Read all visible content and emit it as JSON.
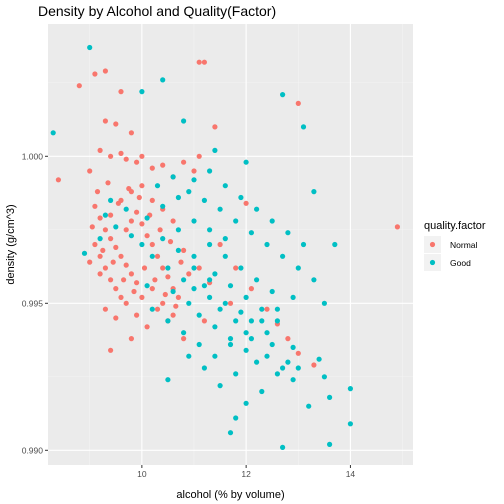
{
  "chart_data": {
    "type": "scatter",
    "title": "Density by Alcohol and Quality(Factor)",
    "xlabel": "alcohol (% by volume)",
    "ylabel": "density (g/cm^3)",
    "xlim": [
      8.2,
      15.2
    ],
    "ylim": [
      0.9895,
      1.0045
    ],
    "x_ticks": [
      10,
      12,
      14
    ],
    "y_ticks": [
      0.99,
      0.995,
      1.0
    ],
    "x_tick_labels": [
      "10",
      "12",
      "14"
    ],
    "y_tick_labels": [
      "0.990",
      "0.995",
      "1.000"
    ],
    "grid": true,
    "legend": {
      "title": "quality.factor",
      "position": "right"
    },
    "series": [
      {
        "name": "Normal",
        "color": "#F8766D",
        "points": [
          [
            8.8,
            1.0024
          ],
          [
            9.1,
            1.0028
          ],
          [
            9.3,
            1.0029
          ],
          [
            9.6,
            1.0022
          ],
          [
            11.1,
            1.0032
          ],
          [
            11.2,
            1.0032
          ],
          [
            13.0,
            1.0018
          ],
          [
            14.9,
            0.9976
          ],
          [
            8.4,
            0.9992
          ],
          [
            9.0,
            0.9995
          ],
          [
            9.2,
            1.0002
          ],
          [
            9.3,
            1.0012
          ],
          [
            9.5,
            1.0011
          ],
          [
            9.8,
            1.0008
          ],
          [
            9.4,
            1.0
          ],
          [
            9.6,
            1.0001
          ],
          [
            9.7,
            0.9999
          ],
          [
            9.9,
            0.9998
          ],
          [
            10.0,
            1.0
          ],
          [
            10.2,
            0.9996
          ],
          [
            10.4,
            0.9997
          ],
          [
            10.6,
            0.9993
          ],
          [
            10.8,
            0.9998
          ],
          [
            11.0,
            0.9995
          ],
          [
            11.1,
            1.0
          ],
          [
            11.4,
            1.001
          ],
          [
            12.0,
            0.9984
          ],
          [
            9.1,
            0.9983
          ],
          [
            9.2,
            0.9979
          ],
          [
            9.3,
            0.9975
          ],
          [
            9.4,
            0.9972
          ],
          [
            9.5,
            0.9969
          ],
          [
            9.6,
            0.9966
          ],
          [
            9.7,
            0.9963
          ],
          [
            9.8,
            0.996
          ],
          [
            9.9,
            0.9957
          ],
          [
            9.1,
            0.997
          ],
          [
            9.2,
            0.9966
          ],
          [
            9.3,
            0.9962
          ],
          [
            9.4,
            0.9958
          ],
          [
            9.5,
            0.9955
          ],
          [
            9.6,
            0.9952
          ],
          [
            9.7,
            0.9975
          ],
          [
            9.8,
            0.9978
          ],
          [
            9.9,
            0.9981
          ],
          [
            10.0,
            0.9977
          ],
          [
            10.1,
            0.9973
          ],
          [
            10.2,
            0.997
          ],
          [
            10.3,
            0.9966
          ],
          [
            10.4,
            0.9962
          ],
          [
            10.5,
            0.9959
          ],
          [
            10.6,
            0.9955
          ],
          [
            10.7,
            0.9952
          ],
          [
            10.8,
            0.9968
          ],
          [
            9.0,
            0.9964
          ],
          [
            9.2,
            0.996
          ],
          [
            9.4,
            0.998
          ],
          [
            9.6,
            0.9985
          ],
          [
            9.8,
            0.9988
          ],
          [
            10.0,
            0.999
          ],
          [
            10.2,
            0.9985
          ],
          [
            10.4,
            0.9982
          ],
          [
            10.6,
            0.9978
          ],
          [
            9.3,
            0.9948
          ],
          [
            9.5,
            0.9945
          ],
          [
            9.7,
            0.995
          ],
          [
            9.9,
            0.9946
          ],
          [
            10.1,
            0.9942
          ],
          [
            10.3,
            0.9948
          ],
          [
            10.5,
            0.9944
          ],
          [
            9.4,
            0.9934
          ],
          [
            9.8,
            0.9938
          ],
          [
            10.0,
            0.9952
          ],
          [
            10.2,
            0.9955
          ],
          [
            10.4,
            0.995
          ],
          [
            10.6,
            0.9946
          ],
          [
            10.9,
            0.996
          ],
          [
            11.1,
            0.9962
          ],
          [
            11.3,
            0.9957
          ],
          [
            11.5,
            0.997
          ],
          [
            11.8,
            0.9962
          ],
          [
            12.1,
            0.9955
          ],
          [
            12.4,
            0.9948
          ],
          [
            12.8,
            0.9938
          ],
          [
            13.0,
            0.9933
          ],
          [
            13.3,
            0.9929
          ],
          [
            12.6,
            0.9943
          ],
          [
            11.7,
            0.995
          ],
          [
            11.2,
            0.9944
          ],
          [
            10.8,
            0.9938
          ],
          [
            9.15,
            0.9988
          ],
          [
            9.35,
            0.9991
          ],
          [
            9.55,
            0.9984
          ],
          [
            9.75,
            0.9989
          ],
          [
            9.95,
            0.9986
          ],
          [
            10.15,
            0.998
          ],
          [
            10.35,
            0.9975
          ],
          [
            10.55,
            0.9971
          ],
          [
            10.75,
            0.9964
          ],
          [
            9.05,
            0.9976
          ],
          [
            9.25,
            0.9968
          ],
          [
            9.45,
            0.9964
          ],
          [
            9.65,
            0.9958
          ],
          [
            9.85,
            0.9954
          ],
          [
            10.05,
            0.9962
          ],
          [
            10.25,
            0.9958
          ],
          [
            10.45,
            0.9953
          ],
          [
            10.65,
            0.9949
          ]
        ]
      },
      {
        "name": "Good",
        "color": "#00BFC4",
        "points": [
          [
            9.0,
            1.0037
          ],
          [
            8.3,
            1.0008
          ],
          [
            10.0,
            1.0022
          ],
          [
            10.4,
            1.0026
          ],
          [
            12.7,
            1.0021
          ],
          [
            13.1,
            1.001
          ],
          [
            13.3,
            0.9988
          ],
          [
            13.7,
            0.997
          ],
          [
            13.5,
            0.995
          ],
          [
            14.0,
            0.9921
          ],
          [
            13.6,
            0.9918
          ],
          [
            13.2,
            0.9915
          ],
          [
            14.0,
            0.9909
          ],
          [
            12.7,
            0.9901
          ],
          [
            13.6,
            0.9902
          ],
          [
            11.7,
            0.9906
          ],
          [
            11.8,
            0.9911
          ],
          [
            12.0,
            0.9916
          ],
          [
            12.3,
            0.992
          ],
          [
            12.6,
            0.9926
          ],
          [
            12.8,
            0.993
          ],
          [
            13.0,
            0.9928
          ],
          [
            12.9,
            0.9935
          ],
          [
            12.4,
            0.994
          ],
          [
            12.1,
            0.9944
          ],
          [
            11.9,
            0.9947
          ],
          [
            11.6,
            0.995
          ],
          [
            11.3,
            0.9952
          ],
          [
            11.0,
            0.9955
          ],
          [
            10.8,
            0.9958
          ],
          [
            10.5,
            0.9962
          ],
          [
            10.2,
            0.9966
          ],
          [
            10.0,
            0.997
          ],
          [
            9.8,
            0.9973
          ],
          [
            9.5,
            0.9976
          ],
          [
            9.3,
            0.998
          ],
          [
            10.3,
            0.999
          ],
          [
            10.6,
            0.9993
          ],
          [
            10.9,
            0.9988
          ],
          [
            11.2,
            0.9985
          ],
          [
            11.5,
            0.9982
          ],
          [
            11.8,
            0.9978
          ],
          [
            12.1,
            0.9974
          ],
          [
            12.4,
            0.997
          ],
          [
            12.7,
            0.9966
          ],
          [
            13.0,
            0.9962
          ],
          [
            13.3,
            0.9958
          ],
          [
            12.9,
            0.9952
          ],
          [
            12.6,
            0.9948
          ],
          [
            12.3,
            0.9944
          ],
          [
            12.0,
            0.994
          ],
          [
            11.7,
            0.9936
          ],
          [
            11.4,
            0.9932
          ],
          [
            11.1,
            0.9936
          ],
          [
            10.8,
            0.994
          ],
          [
            10.5,
            0.9944
          ],
          [
            10.2,
            0.9948
          ],
          [
            11.0,
            0.9966
          ],
          [
            11.3,
            0.997
          ],
          [
            11.6,
            0.9966
          ],
          [
            11.9,
            0.9962
          ],
          [
            12.2,
            0.9958
          ],
          [
            12.5,
            0.9954
          ],
          [
            11.4,
            0.996
          ],
          [
            11.7,
            0.9956
          ],
          [
            12.0,
            0.9952
          ],
          [
            12.3,
            0.9948
          ],
          [
            12.6,
            0.9944
          ],
          [
            11.1,
            0.9946
          ],
          [
            11.4,
            0.9942
          ],
          [
            11.7,
            0.9938
          ],
          [
            12.0,
            0.9934
          ],
          [
            10.7,
            0.9975
          ],
          [
            11.0,
            0.9978
          ],
          [
            11.3,
            0.9975
          ],
          [
            11.6,
            0.9972
          ],
          [
            10.4,
            0.9972
          ],
          [
            10.7,
            0.9968
          ],
          [
            11.0,
            0.9962
          ],
          [
            11.3,
            0.9958
          ],
          [
            10.1,
            0.9956
          ],
          [
            13.4,
            0.9931
          ],
          [
            12.9,
            0.9924
          ],
          [
            12.5,
            0.9936
          ],
          [
            11.2,
            0.9928
          ],
          [
            10.9,
            0.9932
          ],
          [
            10.5,
            0.9924
          ],
          [
            11.5,
            0.9922
          ],
          [
            11.8,
            0.9926
          ],
          [
            12.2,
            0.993
          ],
          [
            8.9,
            0.9967
          ],
          [
            9.2,
            0.9972
          ],
          [
            9.4,
            0.9985
          ],
          [
            9.7,
            0.9982
          ],
          [
            10.1,
            0.9979
          ],
          [
            10.4,
            0.9983
          ],
          [
            10.7,
            0.9986
          ],
          [
            11.0,
            0.9992
          ],
          [
            11.3,
            0.9995
          ],
          [
            11.6,
            0.999
          ],
          [
            11.9,
            0.9986
          ],
          [
            12.2,
            0.9982
          ],
          [
            12.5,
            0.9978
          ],
          [
            12.8,
            0.9974
          ],
          [
            13.1,
            0.997
          ],
          [
            12.0,
            0.9998
          ],
          [
            11.4,
            1.0002
          ],
          [
            10.8,
            1.0012
          ],
          [
            10.6,
            0.9954
          ],
          [
            10.9,
            0.995
          ],
          [
            11.2,
            0.9956
          ],
          [
            11.5,
            0.9948
          ],
          [
            11.8,
            0.9944
          ],
          [
            12.1,
            0.9938
          ],
          [
            12.4,
            0.9932
          ],
          [
            12.7,
            0.9928
          ],
          [
            13.5,
            0.9925
          ]
        ]
      }
    ]
  }
}
